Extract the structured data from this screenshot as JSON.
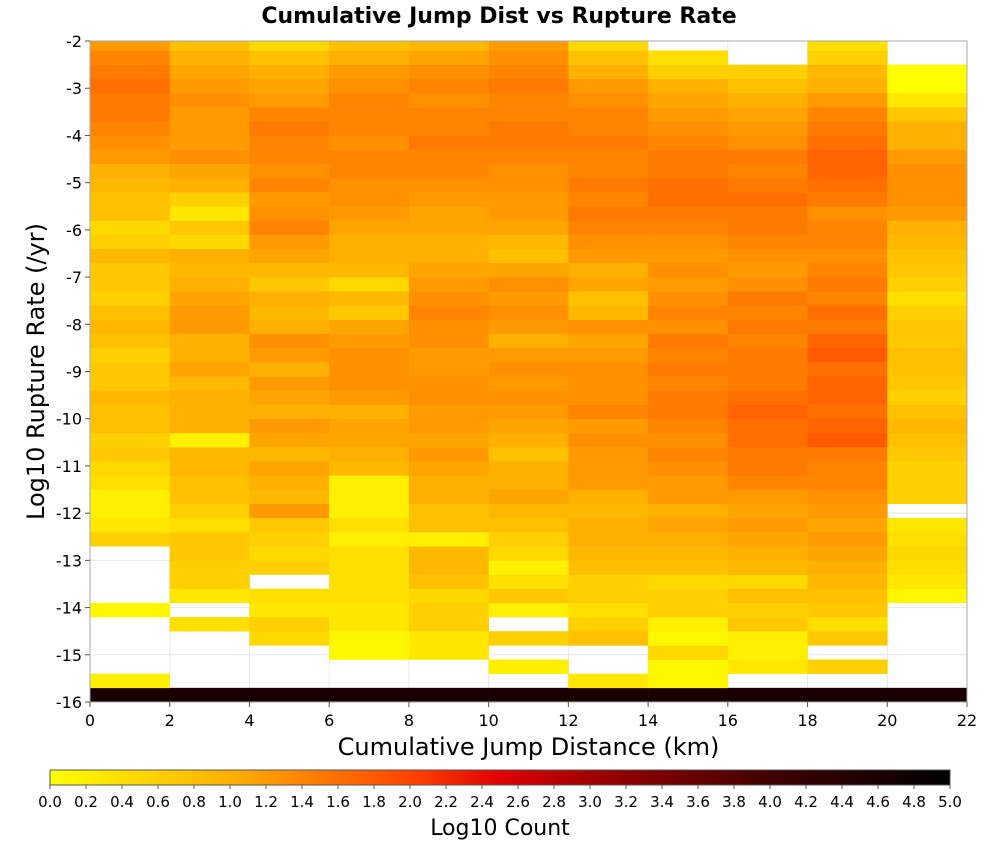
{
  "chart_data": {
    "type": "heatmap",
    "title": "Cumulative Jump Dist vs Rupture Rate",
    "xlabel": "Cumulative Jump Distance (km)",
    "ylabel": "Log10 Rupture Rate (/yr)",
    "xlim": [
      0,
      22
    ],
    "ylim": [
      -16,
      -2
    ],
    "x_ticks": [
      "0",
      "2",
      "4",
      "6",
      "8",
      "10",
      "12",
      "14",
      "16",
      "18",
      "20",
      "22"
    ],
    "y_ticks": [
      "-2",
      "-3",
      "-4",
      "-5",
      "-6",
      "-7",
      "-8",
      "-9",
      "-10",
      "-11",
      "-12",
      "-13",
      "-14",
      "-15",
      "-16"
    ],
    "x_bin_edges": [
      0,
      2,
      4,
      6,
      8,
      10,
      12,
      14,
      16,
      18,
      20,
      22
    ],
    "y_bin_width": 0.3,
    "y_first_bin_center": -15.85,
    "grid": true,
    "colorbar": {
      "label": "Log10 Count",
      "range": [
        0.0,
        5.0
      ],
      "tick_labels": [
        "0.0",
        "0.2",
        "0.4",
        "0.6",
        "0.8",
        "1.0",
        "1.2",
        "1.4",
        "1.6",
        "1.8",
        "2.0",
        "2.2",
        "2.4",
        "2.6",
        "2.8",
        "3.0",
        "3.2",
        "3.4",
        "3.6",
        "3.8",
        "4.0",
        "4.2",
        "4.4",
        "4.6",
        "4.8",
        "5.0"
      ],
      "stops": [
        {
          "v": 0.0,
          "color": "#ffff00"
        },
        {
          "v": 1.0,
          "color": "#ffb000"
        },
        {
          "v": 2.0,
          "color": "#ff4400"
        },
        {
          "v": 2.5,
          "color": "#e00000"
        },
        {
          "v": 3.0,
          "color": "#a00000"
        },
        {
          "v": 4.0,
          "color": "#400000"
        },
        {
          "v": 5.0,
          "color": "#000000"
        }
      ]
    },
    "columns": [
      {
        "x_range": [
          0,
          2
        ],
        "start_center": -15.85,
        "values": [
          4.6,
          0.2,
          null,
          null,
          null,
          null,
          0.1,
          null,
          null,
          null,
          null,
          0.6,
          0.3,
          0.2,
          0.2,
          0.4,
          0.5,
          0.7,
          0.6,
          0.8,
          0.8,
          0.9,
          0.7,
          0.7,
          0.6,
          0.8,
          0.9,
          0.8,
          0.6,
          0.7,
          0.7,
          0.9,
          0.6,
          0.5,
          0.8,
          0.8,
          0.9,
          1.0,
          1.2,
          1.3,
          1.4,
          1.5,
          1.5,
          1.6,
          1.5,
          1.4,
          1.2,
          1.0,
          0.8,
          0.5,
          0.2
        ]
      },
      {
        "x_range": [
          2,
          4
        ],
        "start_center": -15.85,
        "values": [
          4.6,
          null,
          null,
          null,
          null,
          0.4,
          null,
          0.3,
          0.6,
          0.6,
          0.7,
          0.7,
          0.4,
          0.6,
          0.8,
          0.8,
          0.9,
          0.9,
          0.2,
          1.0,
          1.0,
          1.0,
          0.9,
          1.1,
          1.0,
          1.0,
          1.2,
          1.2,
          1.1,
          1.0,
          0.9,
          1.0,
          0.5,
          0.7,
          0.3,
          0.6,
          1.0,
          1.1,
          1.3,
          1.2,
          1.2,
          1.2,
          1.3,
          1.2,
          1.1,
          1.0,
          0.8,
          0.5
        ]
      },
      {
        "x_range": [
          4,
          6
        ],
        "start_center": -15.85,
        "values": [
          4.6,
          null,
          null,
          null,
          0.5,
          0.6,
          0.3,
          0.4,
          null,
          0.6,
          0.5,
          0.6,
          0.7,
          1.2,
          0.9,
          1.0,
          1.1,
          0.9,
          1.1,
          1.2,
          1.0,
          1.1,
          1.2,
          1.0,
          1.2,
          1.3,
          1.0,
          0.9,
          1.0,
          0.7,
          0.9,
          1.1,
          1.2,
          1.4,
          1.3,
          1.2,
          1.4,
          1.3,
          1.4,
          1.4,
          1.5,
          1.4,
          1.2,
          1.1,
          1.0,
          0.8,
          0.5,
          0.2
        ]
      },
      {
        "x_range": [
          6,
          8
        ],
        "start_center": -15.85,
        "values": [
          4.6,
          null,
          null,
          0.1,
          0.1,
          0.3,
          0.3,
          0.4,
          0.4,
          0.4,
          0.4,
          0.2,
          0.4,
          0.2,
          0.2,
          0.2,
          0.9,
          1.0,
          1.1,
          1.1,
          1.0,
          1.2,
          1.3,
          1.3,
          1.3,
          1.2,
          1.1,
          0.7,
          0.9,
          0.5,
          0.9,
          1.0,
          1.0,
          1.1,
          1.2,
          1.3,
          1.3,
          1.4,
          1.4,
          1.3,
          1.4,
          1.4,
          1.4,
          1.3,
          1.2,
          1.0,
          0.8
        ]
      },
      {
        "x_range": [
          8,
          10
        ],
        "start_center": -15.85,
        "values": [
          4.6,
          null,
          null,
          0.3,
          0.3,
          0.6,
          0.6,
          0.5,
          0.8,
          0.9,
          0.9,
          0.2,
          0.8,
          0.8,
          1.0,
          1.0,
          1.1,
          1.2,
          1.1,
          1.2,
          1.2,
          1.3,
          1.3,
          1.2,
          1.2,
          1.3,
          1.3,
          1.4,
          1.3,
          1.2,
          1.1,
          1.0,
          1.0,
          1.1,
          1.1,
          1.2,
          1.3,
          1.4,
          1.4,
          1.5,
          1.4,
          1.4,
          1.3,
          1.4,
          1.3,
          1.1,
          0.9,
          0.7,
          0.6,
          0.4
        ]
      },
      {
        "x_range": [
          10,
          12
        ],
        "start_center": -15.85,
        "values": [
          4.6,
          null,
          0.2,
          null,
          0.6,
          null,
          0.2,
          0.7,
          0.4,
          0.2,
          0.5,
          0.6,
          0.8,
          0.9,
          1.1,
          1.0,
          1.0,
          0.8,
          1.0,
          1.1,
          1.2,
          1.3,
          1.2,
          1.3,
          1.2,
          1.0,
          1.2,
          1.3,
          1.2,
          1.3,
          1.1,
          0.8,
          0.9,
          1.1,
          1.2,
          1.2,
          1.3,
          1.3,
          1.4,
          1.5,
          1.5,
          1.4,
          1.4,
          1.5,
          1.4,
          1.3,
          1.2,
          0.9,
          0.7,
          0.5
        ]
      },
      {
        "x_range": [
          12,
          14
        ],
        "start_center": -15.85,
        "values": [
          4.6,
          0.3,
          null,
          null,
          0.8,
          0.6,
          0.4,
          0.6,
          0.6,
          0.8,
          0.9,
          1.0,
          1.0,
          0.9,
          1.0,
          1.2,
          1.2,
          1.2,
          1.3,
          1.2,
          1.4,
          1.3,
          1.3,
          1.3,
          1.2,
          1.1,
          1.3,
          0.9,
          0.8,
          1.1,
          1.0,
          1.2,
          1.3,
          1.4,
          1.5,
          1.4,
          1.5,
          1.4,
          1.4,
          1.5,
          1.4,
          1.4,
          1.3,
          1.2,
          1.0,
          0.8,
          0.5,
          0.3
        ]
      },
      {
        "x_range": [
          14,
          16
        ],
        "start_center": -15.85,
        "values": [
          4.6,
          0.1,
          0.1,
          0.5,
          0.1,
          0.2,
          0.6,
          0.6,
          0.5,
          0.8,
          0.9,
          1.0,
          1.1,
          1.0,
          1.2,
          1.2,
          1.3,
          1.4,
          1.3,
          1.4,
          1.5,
          1.5,
          1.4,
          1.5,
          1.4,
          1.5,
          1.3,
          1.4,
          1.3,
          1.2,
          1.3,
          1.2,
          1.3,
          1.4,
          1.5,
          1.6,
          1.6,
          1.5,
          1.5,
          1.4,
          1.3,
          1.2,
          1.1,
          1.0,
          0.6,
          0.4
        ]
      },
      {
        "x_range": [
          16,
          18
        ],
        "start_center": -15.85,
        "values": [
          4.6,
          null,
          0.3,
          0.2,
          0.2,
          0.7,
          0.6,
          0.8,
          0.5,
          0.9,
          1.0,
          1.1,
          1.2,
          1.1,
          1.2,
          1.4,
          1.5,
          1.5,
          1.6,
          1.6,
          1.7,
          1.6,
          1.5,
          1.5,
          1.5,
          1.4,
          1.5,
          1.4,
          1.5,
          1.3,
          1.2,
          1.3,
          1.4,
          1.5,
          1.5,
          1.6,
          1.5,
          1.4,
          1.5,
          1.3,
          1.2,
          1.1,
          1.0,
          0.8,
          0.6
        ]
      },
      {
        "x_range": [
          18,
          20
        ],
        "start_center": -15.85,
        "values": [
          4.6,
          null,
          0.6,
          null,
          0.7,
          0.4,
          0.7,
          0.8,
          0.9,
          1.0,
          1.1,
          1.2,
          1.1,
          1.2,
          1.3,
          1.4,
          1.4,
          1.5,
          1.8,
          1.7,
          1.6,
          1.7,
          1.7,
          1.6,
          1.8,
          1.7,
          1.5,
          1.6,
          1.4,
          1.5,
          1.4,
          1.3,
          1.4,
          1.4,
          1.3,
          1.5,
          1.6,
          1.7,
          1.7,
          1.6,
          1.5,
          1.4,
          1.2,
          1.0,
          0.9,
          0.6,
          0.4,
          0.3,
          0.3
        ]
      },
      {
        "x_range": [
          20,
          22
        ],
        "start_center": -15.85,
        "values": [
          4.6,
          null,
          null,
          null,
          null,
          null,
          null,
          0.1,
          0.3,
          0.4,
          0.5,
          0.4,
          0.3,
          null,
          0.6,
          0.6,
          0.6,
          0.7,
          0.8,
          0.9,
          0.8,
          0.6,
          0.7,
          0.8,
          0.8,
          0.7,
          0.7,
          0.6,
          0.4,
          0.6,
          0.7,
          0.8,
          0.9,
          1.0,
          1.2,
          1.3,
          1.3,
          1.3,
          1.2,
          1.0,
          1.0,
          0.7,
          0.3,
          0.0,
          0.0
        ]
      }
    ]
  }
}
